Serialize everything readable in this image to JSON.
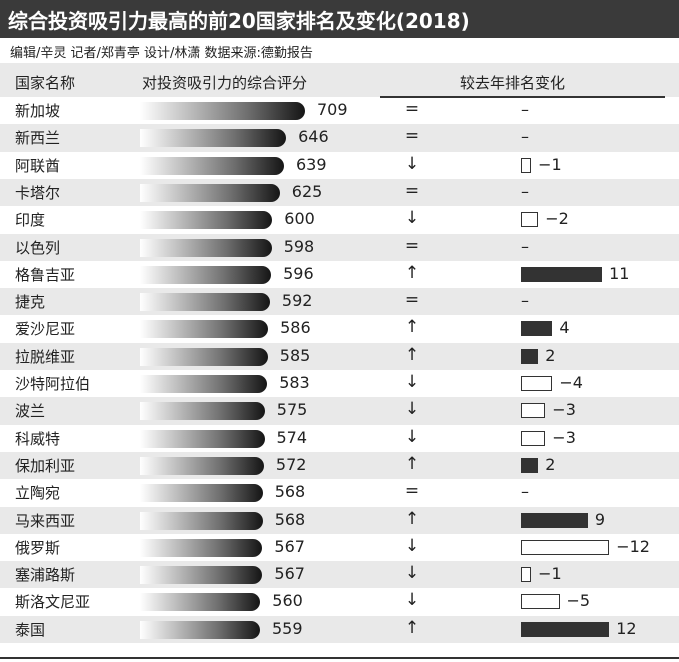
{
  "title": "综合投资吸引力最高的前20国家排名及变化(2018)",
  "credits": "编辑/辛灵  记者/郑青亭  设计/林潇  数据来源:德勤报告",
  "colors": {
    "title_bg": "#3a3a3a",
    "band": "#e9e9e9",
    "bar_dark": "#333333"
  },
  "chart_data": {
    "type": "table",
    "columns": [
      "国家名称",
      "对投资吸引力的综合评分",
      "较去年排名变化"
    ],
    "rows": [
      {
        "country": "新加坡",
        "score": 709,
        "direction": "=",
        "change": 0,
        "change_label": "–"
      },
      {
        "country": "新西兰",
        "score": 646,
        "direction": "=",
        "change": 0,
        "change_label": "–"
      },
      {
        "country": "阿联酋",
        "score": 639,
        "direction": "↓",
        "change": -1,
        "change_label": "−1"
      },
      {
        "country": "卡塔尔",
        "score": 625,
        "direction": "=",
        "change": 0,
        "change_label": "–"
      },
      {
        "country": "印度",
        "score": 600,
        "direction": "↓",
        "change": -2,
        "change_label": "−2"
      },
      {
        "country": "以色列",
        "score": 598,
        "direction": "=",
        "change": 0,
        "change_label": "–"
      },
      {
        "country": "格鲁吉亚",
        "score": 596,
        "direction": "↑",
        "change": 11,
        "change_label": "11"
      },
      {
        "country": "捷克",
        "score": 592,
        "direction": "=",
        "change": 0,
        "change_label": "–"
      },
      {
        "country": "爱沙尼亚",
        "score": 586,
        "direction": "↑",
        "change": 4,
        "change_label": "4"
      },
      {
        "country": "拉脱维亚",
        "score": 585,
        "direction": "↑",
        "change": 2,
        "change_label": "2"
      },
      {
        "country": "沙特阿拉伯",
        "score": 583,
        "direction": "↓",
        "change": -4,
        "change_label": "−4"
      },
      {
        "country": "波兰",
        "score": 575,
        "direction": "↓",
        "change": -3,
        "change_label": "−3"
      },
      {
        "country": "科威特",
        "score": 574,
        "direction": "↓",
        "change": -3,
        "change_label": "−3"
      },
      {
        "country": "保加利亚",
        "score": 572,
        "direction": "↑",
        "change": 2,
        "change_label": "2"
      },
      {
        "country": "立陶宛",
        "score": 568,
        "direction": "=",
        "change": 0,
        "change_label": "–"
      },
      {
        "country": "马来西亚",
        "score": 568,
        "direction": "↑",
        "change": 9,
        "change_label": "9"
      },
      {
        "country": "俄罗斯",
        "score": 567,
        "direction": "↓",
        "change": -12,
        "change_label": "−12"
      },
      {
        "country": "塞浦路斯",
        "score": 567,
        "direction": "↓",
        "change": -1,
        "change_label": "−1"
      },
      {
        "country": "斯洛文尼亚",
        "score": 560,
        "direction": "↓",
        "change": -5,
        "change_label": "−5"
      },
      {
        "country": "泰国",
        "score": 559,
        "direction": "↑",
        "change": 12,
        "change_label": "12"
      }
    ]
  }
}
